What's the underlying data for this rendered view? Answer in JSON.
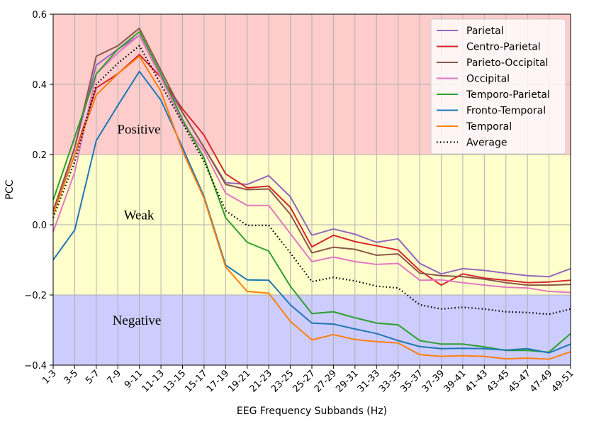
{
  "chart_data": {
    "type": "line",
    "title": "",
    "xlabel": "EEG Frequency Subbands (Hz)",
    "ylabel": "PCC",
    "ylim": [
      -0.4,
      0.6
    ],
    "yticks": [
      "−0.4",
      "−0.2",
      "0.0",
      "0.2",
      "0.4",
      "0.6"
    ],
    "yticks_values": [
      -0.4,
      -0.2,
      0.0,
      0.2,
      0.4,
      0.6
    ],
    "grid": true,
    "legend_position": "top-right",
    "categories": [
      "1-3",
      "3-5",
      "5-7",
      "7-9",
      "9-11",
      "11-13",
      "13-15",
      "15-17",
      "17-19",
      "19-21",
      "21-23",
      "23-25",
      "25-27",
      "27-29",
      "29-31",
      "31-33",
      "33-35",
      "35-37",
      "37-39",
      "39-41",
      "41-43",
      "43-45",
      "45-47",
      "47-49",
      "49-51"
    ],
    "bands": [
      {
        "label": "Positive",
        "from": 0.2,
        "to": 0.6,
        "color": "#ffcccc"
      },
      {
        "label": "Weak",
        "from": -0.2,
        "to": 0.2,
        "color": "#ffffcc"
      },
      {
        "label": "Negative",
        "from": -0.4,
        "to": -0.2,
        "color": "#ccccff"
      }
    ],
    "series": [
      {
        "name": "Parietal",
        "color": "#9467bd",
        "dash": "",
        "values": [
          0.03,
          0.22,
          0.455,
          0.5,
          0.54,
          0.42,
          0.32,
          0.22,
          0.12,
          0.115,
          0.14,
          0.08,
          -0.03,
          -0.012,
          -0.027,
          -0.05,
          -0.04,
          -0.11,
          -0.14,
          -0.125,
          -0.13,
          -0.138,
          -0.145,
          -0.148,
          -0.125
        ]
      },
      {
        "name": "Centro-Parietal",
        "color": "#d62728",
        "dash": "",
        "values": [
          0.03,
          0.2,
          0.39,
          0.43,
          0.485,
          0.42,
          0.33,
          0.255,
          0.145,
          0.105,
          0.11,
          0.05,
          -0.063,
          -0.03,
          -0.048,
          -0.06,
          -0.072,
          -0.13,
          -0.172,
          -0.14,
          -0.152,
          -0.158,
          -0.165,
          -0.163,
          -0.158
        ]
      },
      {
        "name": "Parieto-Occipital",
        "color": "#8c564b",
        "dash": "",
        "values": [
          0.04,
          0.22,
          0.48,
          0.51,
          0.56,
          0.44,
          0.32,
          0.22,
          0.115,
          0.1,
          0.102,
          0.03,
          -0.08,
          -0.064,
          -0.07,
          -0.087,
          -0.083,
          -0.138,
          -0.145,
          -0.148,
          -0.155,
          -0.165,
          -0.172,
          -0.172,
          -0.17
        ]
      },
      {
        "name": "Occipital",
        "color": "#e377c2",
        "dash": "",
        "values": [
          -0.02,
          0.15,
          0.43,
          0.49,
          0.54,
          0.42,
          0.29,
          0.21,
          0.09,
          0.055,
          0.055,
          -0.025,
          -0.105,
          -0.092,
          -0.105,
          -0.113,
          -0.11,
          -0.158,
          -0.157,
          -0.165,
          -0.172,
          -0.178,
          -0.18,
          -0.19,
          -0.193
        ]
      },
      {
        "name": "Temporo-Parietal",
        "color": "#2ca02c",
        "dash": "",
        "values": [
          0.07,
          0.25,
          0.43,
          0.5,
          0.55,
          0.43,
          0.3,
          0.19,
          0.02,
          -0.05,
          -0.075,
          -0.175,
          -0.253,
          -0.248,
          -0.265,
          -0.28,
          -0.285,
          -0.33,
          -0.34,
          -0.34,
          -0.348,
          -0.358,
          -0.358,
          -0.363,
          -0.31
        ]
      },
      {
        "name": "Fronto-Temporal",
        "color": "#1f77b4",
        "dash": "",
        "values": [
          -0.1,
          -0.015,
          0.24,
          0.34,
          0.437,
          0.355,
          0.22,
          0.08,
          -0.115,
          -0.157,
          -0.158,
          -0.228,
          -0.28,
          -0.283,
          -0.297,
          -0.31,
          -0.33,
          -0.347,
          -0.353,
          -0.352,
          -0.353,
          -0.357,
          -0.353,
          -0.365,
          -0.34
        ]
      },
      {
        "name": "Temporal",
        "color": "#ff7f0e",
        "dash": "",
        "values": [
          0.03,
          0.2,
          0.37,
          0.43,
          0.48,
          0.38,
          0.21,
          0.075,
          -0.12,
          -0.19,
          -0.195,
          -0.275,
          -0.328,
          -0.313,
          -0.327,
          -0.333,
          -0.337,
          -0.37,
          -0.375,
          -0.373,
          -0.375,
          -0.382,
          -0.38,
          -0.383,
          -0.362
        ]
      },
      {
        "name": "Average",
        "color": "#000000",
        "dash": "1.6,3.2",
        "values": [
          0.02,
          0.18,
          0.4,
          0.46,
          0.51,
          0.4,
          0.29,
          0.18,
          0.04,
          -0.002,
          -0.002,
          -0.08,
          -0.162,
          -0.15,
          -0.16,
          -0.175,
          -0.18,
          -0.228,
          -0.24,
          -0.235,
          -0.24,
          -0.248,
          -0.25,
          -0.255,
          -0.24
        ]
      }
    ]
  }
}
